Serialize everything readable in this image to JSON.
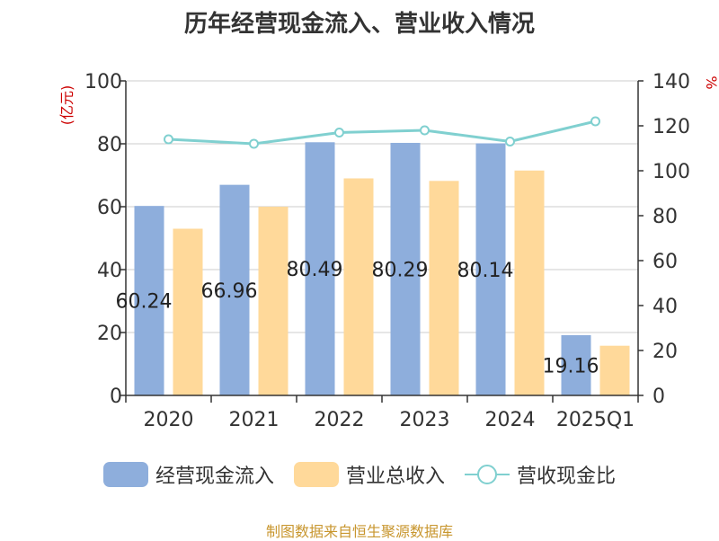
{
  "chart_data": {
    "type": "bar",
    "title": "历年经营现金流入、营业收入情况",
    "categories": [
      "2020",
      "2021",
      "2022",
      "2023",
      "2024",
      "2025Q1"
    ],
    "y_left": {
      "unit_label": "(亿元)",
      "ylim": [
        0,
        100
      ],
      "ticks": [
        0,
        20,
        40,
        60,
        80,
        100
      ]
    },
    "y_right": {
      "unit_label": "%",
      "ylim": [
        0,
        140
      ],
      "ticks": [
        0,
        20,
        40,
        60,
        80,
        100,
        120,
        140
      ]
    },
    "series": [
      {
        "name": "经营现金流入",
        "type": "bar",
        "axis": "left",
        "color": "#8eaedc",
        "values": [
          60.24,
          66.96,
          80.49,
          80.29,
          80.14,
          19.16
        ],
        "data_labels": [
          "60.24",
          "66.96",
          "80.49",
          "80.29",
          "80.14",
          "19.16"
        ]
      },
      {
        "name": "营业总收入",
        "type": "bar",
        "axis": "left",
        "color": "#ffd99a",
        "values": [
          53,
          60,
          69,
          68.2,
          71.5,
          15.8
        ]
      },
      {
        "name": "营收现金比",
        "type": "line",
        "axis": "right",
        "color": "#80d0d0",
        "values": [
          114,
          112,
          117,
          118,
          113,
          122
        ]
      }
    ],
    "grid": true,
    "legend_position": "bottom"
  },
  "footer": {
    "source": "制图数据来自恒生聚源数据库"
  }
}
